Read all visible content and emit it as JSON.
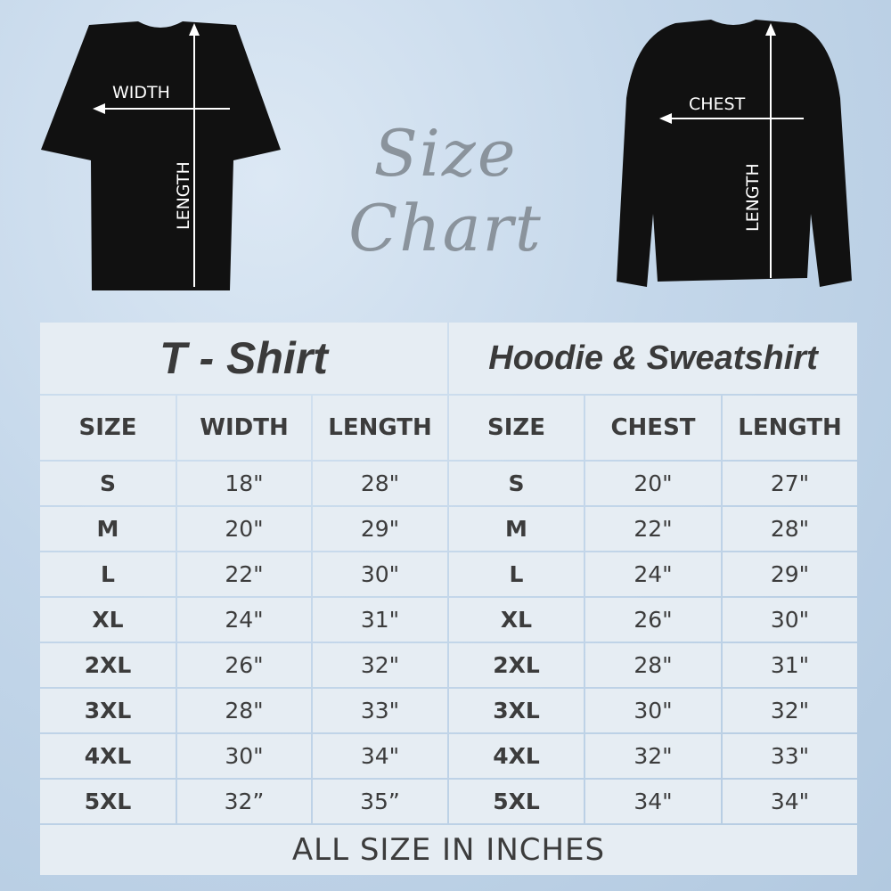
{
  "heading": "Size Chart",
  "tshirt_labels": {
    "width": "WIDTH",
    "length": "LENGTH"
  },
  "hoodie_labels": {
    "chest": "CHEST",
    "length": "LENGTH"
  },
  "tshirt": {
    "title": "T - Shirt",
    "headers": [
      "SIZE",
      "WIDTH",
      "LENGTH"
    ],
    "rows": [
      [
        "S",
        "18\"",
        "28\""
      ],
      [
        "M",
        "20\"",
        "29\""
      ],
      [
        "L",
        "22\"",
        "30\""
      ],
      [
        "XL",
        "24\"",
        "31\""
      ],
      [
        "2XL",
        "26\"",
        "32\""
      ],
      [
        "3XL",
        "28\"",
        "33\""
      ],
      [
        "4XL",
        "30\"",
        "34\""
      ],
      [
        "5XL",
        "32”",
        "35”"
      ]
    ]
  },
  "hoodie": {
    "title": "Hoodie & Sweatshirt",
    "headers": [
      "SIZE",
      "CHEST",
      "LENGTH"
    ],
    "rows": [
      [
        "S",
        "20\"",
        "27\""
      ],
      [
        "M",
        "22\"",
        "28\""
      ],
      [
        "L",
        "24\"",
        "29\""
      ],
      [
        "XL",
        "26\"",
        "30\""
      ],
      [
        "2XL",
        "28\"",
        "31\""
      ],
      [
        "3XL",
        "30\"",
        "32\""
      ],
      [
        "4XL",
        "32\"",
        "33\""
      ],
      [
        "5XL",
        "34\"",
        "34\""
      ]
    ]
  },
  "footer": "ALL SIZE IN INCHES"
}
